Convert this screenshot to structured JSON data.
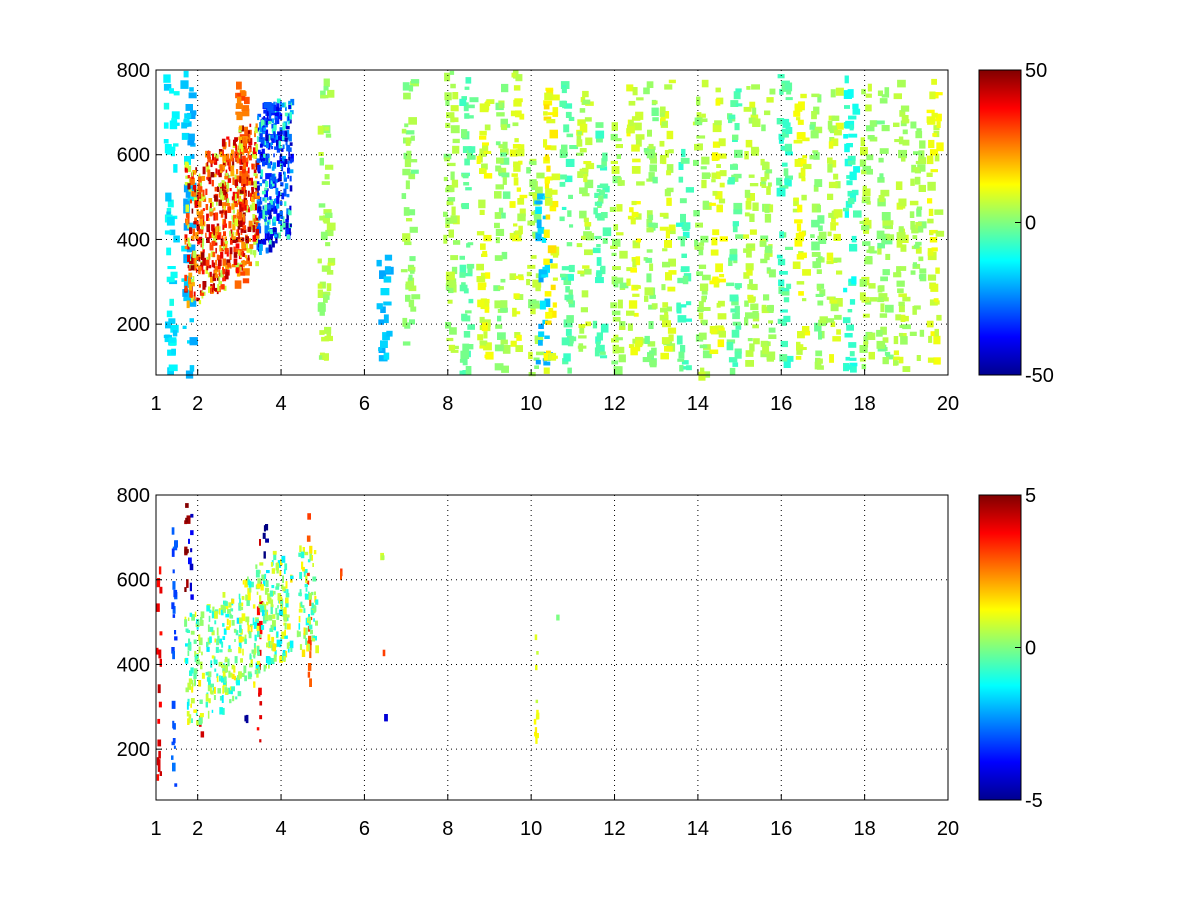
{
  "chart_data": [
    {
      "type": "heatmap",
      "title": "",
      "xlabel": "",
      "ylabel": "",
      "xlim": [
        1,
        20
      ],
      "ylim": [
        80,
        800
      ],
      "xticks": [
        1,
        2,
        4,
        6,
        8,
        10,
        12,
        14,
        16,
        18,
        20
      ],
      "yticks": [
        200,
        400,
        600,
        800
      ],
      "grid": true,
      "colormap": "jet",
      "colorbar": {
        "range": [
          -50,
          50
        ],
        "ticks": [
          50,
          0,
          -50
        ]
      },
      "ridge": [
        [
          1.9,
          320
        ],
        [
          2.4,
          350
        ],
        [
          2.8,
          380
        ],
        [
          3.2,
          410
        ],
        [
          3.6,
          440
        ],
        [
          4.0,
          470
        ]
      ],
      "cells": [
        [
          1.3,
          90,
          790,
          -14
        ],
        [
          1.7,
          80,
          800,
          -18
        ],
        [
          3.0,
          300,
          800,
          28
        ],
        [
          3.6,
          420,
          760,
          -32
        ],
        [
          5.0,
          100,
          780,
          4
        ],
        [
          6.4,
          90,
          380,
          -18
        ],
        [
          7.0,
          140,
          780,
          2
        ],
        [
          8.0,
          100,
          800,
          4
        ],
        [
          8.4,
          80,
          800,
          -3
        ],
        [
          8.8,
          120,
          800,
          9
        ],
        [
          9.2,
          100,
          780,
          2
        ],
        [
          9.6,
          150,
          800,
          8
        ],
        [
          10.0,
          80,
          600,
          4
        ],
        [
          10.2,
          100,
          520,
          -18
        ],
        [
          10.4,
          90,
          780,
          12
        ],
        [
          10.8,
          90,
          780,
          -4
        ],
        [
          11.2,
          100,
          760,
          6
        ],
        [
          11.6,
          100,
          700,
          -4
        ],
        [
          12.0,
          100,
          680,
          4
        ],
        [
          12.4,
          100,
          790,
          9
        ],
        [
          12.8,
          100,
          780,
          2
        ],
        [
          13.2,
          120,
          780,
          7
        ],
        [
          13.6,
          100,
          620,
          -5
        ],
        [
          14.0,
          80,
          800,
          4
        ],
        [
          14.4,
          100,
          760,
          9
        ],
        [
          14.8,
          90,
          760,
          -3
        ],
        [
          15.2,
          100,
          780,
          6
        ],
        [
          15.6,
          100,
          760,
          4
        ],
        [
          16.0,
          100,
          800,
          -5
        ],
        [
          16.4,
          100,
          780,
          9
        ],
        [
          16.8,
          100,
          760,
          2
        ],
        [
          17.2,
          100,
          760,
          7
        ],
        [
          17.6,
          90,
          790,
          -8
        ],
        [
          18.0,
          100,
          780,
          4
        ],
        [
          18.4,
          120,
          760,
          2
        ],
        [
          18.8,
          100,
          780,
          6
        ],
        [
          19.2,
          120,
          700,
          4
        ],
        [
          19.6,
          100,
          780,
          9
        ]
      ]
    },
    {
      "type": "heatmap",
      "title": "",
      "xlabel": "",
      "ylabel": "",
      "xlim": [
        1,
        20
      ],
      "ylim": [
        80,
        800
      ],
      "xticks": [
        1,
        2,
        4,
        6,
        8,
        10,
        12,
        14,
        16,
        18,
        20
      ],
      "yticks": [
        200,
        400,
        600,
        800
      ],
      "grid": true,
      "colormap": "jet",
      "colorbar": {
        "range": [
          -5,
          5
        ],
        "ticks": [
          5,
          0,
          -5
        ]
      },
      "ridge": [
        [
          1.9,
          320
        ],
        [
          2.4,
          340
        ],
        [
          2.8,
          370
        ],
        [
          3.2,
          400
        ],
        [
          3.6,
          440
        ],
        [
          4.0,
          470
        ],
        [
          4.6,
          480
        ]
      ],
      "cells": [
        [
          1.05,
          140,
          640,
          4
        ],
        [
          1.4,
          100,
          760,
          -3
        ],
        [
          1.7,
          560,
          800,
          5
        ],
        [
          1.8,
          560,
          780,
          -4
        ],
        [
          2.05,
          220,
          300,
          4
        ],
        [
          3.15,
          250,
          300,
          -5
        ],
        [
          3.45,
          200,
          720,
          4
        ],
        [
          3.6,
          640,
          760,
          -5
        ],
        [
          4.65,
          360,
          760,
          3
        ],
        [
          5.4,
          590,
          640,
          3
        ],
        [
          6.4,
          650,
          690,
          0.5
        ],
        [
          6.45,
          430,
          460,
          3.5
        ],
        [
          6.45,
          270,
          290,
          -4
        ],
        [
          10.1,
          200,
          500,
          1
        ],
        [
          10.6,
          515,
          520,
          0
        ]
      ]
    }
  ]
}
